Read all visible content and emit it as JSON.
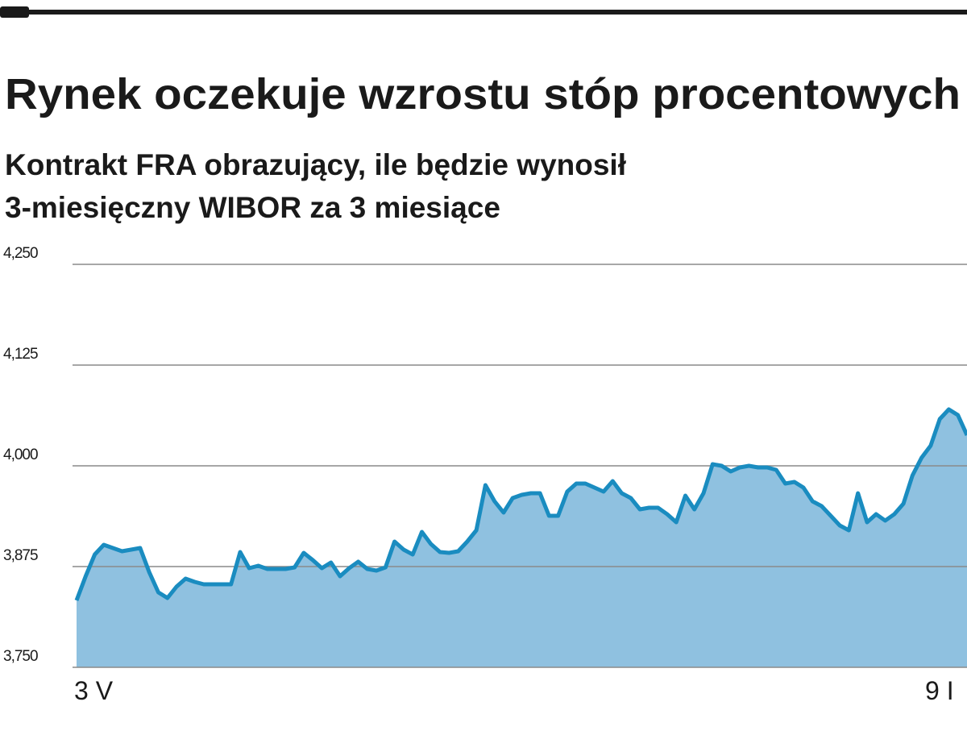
{
  "chart_data": {
    "type": "area",
    "title": "Rynek oczekuje wzrostu stóp procentowych",
    "subtitle": [
      "Kontrakt FRA obrazujący, ile będzie wynosił",
      "3-miesięczny WIBOR za 3 miesiące"
    ],
    "categories": [
      "3 V",
      null,
      null,
      null,
      null,
      null,
      null,
      null,
      null,
      null,
      null,
      null,
      null,
      null,
      null,
      null,
      null,
      null,
      null,
      null,
      null,
      null,
      null,
      null,
      null,
      null,
      null,
      null,
      null,
      null,
      null,
      null,
      null,
      null,
      null,
      null,
      null,
      null,
      null,
      null,
      null,
      null,
      null,
      null,
      null,
      null,
      null,
      null,
      null,
      null,
      null,
      null,
      null,
      null,
      null,
      null,
      null,
      null,
      null,
      null,
      null,
      null,
      null,
      null,
      null,
      null,
      null,
      null,
      null,
      null,
      null,
      null,
      null,
      null,
      null,
      null,
      null,
      null,
      null,
      null,
      null,
      null,
      null,
      null,
      null,
      null,
      null,
      null,
      null,
      null,
      null,
      null,
      null,
      null,
      null,
      null,
      null,
      null,
      "9 I"
    ],
    "values": [
      3.833,
      3.863,
      3.89,
      3.902,
      3.898,
      3.894,
      3.896,
      3.898,
      3.868,
      3.843,
      3.836,
      3.85,
      3.86,
      3.856,
      3.853,
      3.853,
      3.853,
      3.853,
      3.893,
      3.873,
      3.876,
      3.872,
      3.872,
      3.872,
      3.874,
      3.892,
      3.883,
      3.873,
      3.88,
      3.863,
      3.873,
      3.881,
      3.872,
      3.87,
      3.874,
      3.906,
      3.896,
      3.89,
      3.918,
      3.903,
      3.893,
      3.892,
      3.894,
      3.906,
      3.92,
      3.976,
      3.956,
      3.942,
      3.96,
      3.964,
      3.966,
      3.966,
      3.938,
      3.938,
      3.968,
      3.978,
      3.978,
      3.973,
      3.968,
      3.981,
      3.966,
      3.96,
      3.946,
      3.948,
      3.948,
      3.94,
      3.93,
      3.963,
      3.946,
      3.966,
      4.002,
      4.0,
      3.993,
      3.998,
      4.0,
      3.998,
      3.998,
      3.995,
      3.978,
      3.98,
      3.973,
      3.956,
      3.95,
      3.938,
      3.926,
      3.92,
      3.966,
      3.93,
      3.94,
      3.932,
      3.94,
      3.953,
      3.988,
      4.01,
      4.025,
      4.058,
      4.07,
      4.063,
      4.038
    ],
    "color": "#1a8cc0",
    "fill": "#8fc1e0",
    "ylim": [
      3.75,
      4.25
    ],
    "yticks": [
      {
        "value": 3.75,
        "label": "3,750"
      },
      {
        "value": 3.875,
        "label": "3,875"
      },
      {
        "value": 4.0,
        "label": "4,000"
      },
      {
        "value": 4.125,
        "label": "4,125"
      },
      {
        "value": 4.25,
        "label": "4,250"
      }
    ],
    "grid": true
  }
}
